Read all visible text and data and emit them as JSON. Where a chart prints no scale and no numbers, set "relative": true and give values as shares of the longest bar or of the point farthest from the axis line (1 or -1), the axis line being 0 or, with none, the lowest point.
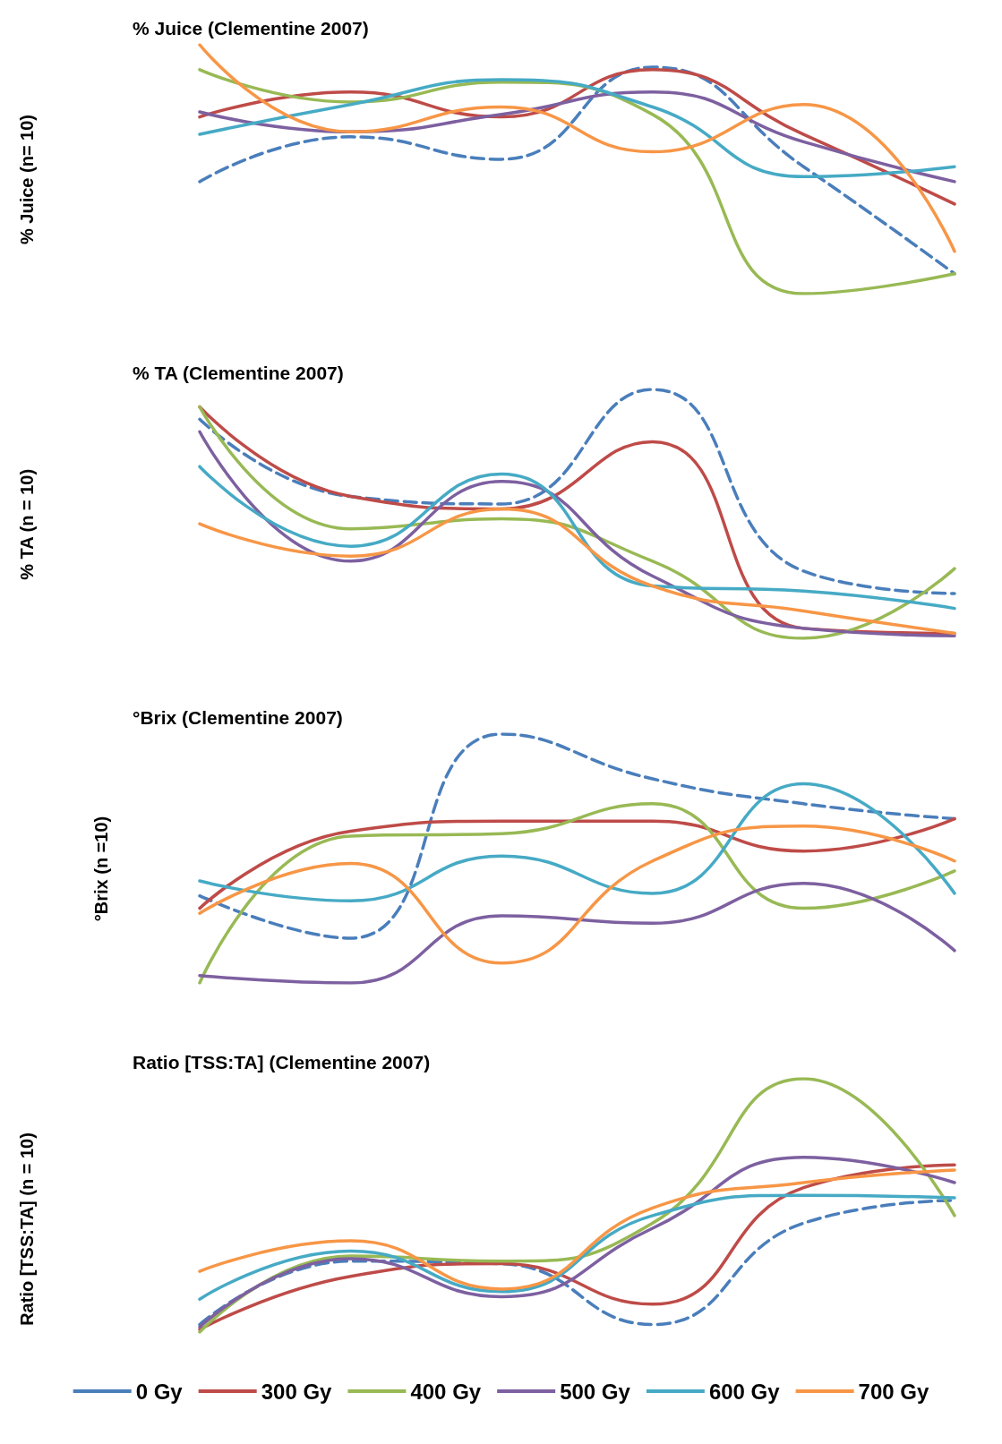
{
  "chart_data": [
    {
      "type": "line",
      "title": "% Juice (Clementine 2007)",
      "ylabel": "% Juice (n= 10)",
      "relative": true,
      "categories": [
        null,
        null,
        null,
        null,
        null,
        null
      ],
      "legend": false,
      "series": [
        {
          "color": "#4a7ebb",
          "line_style": "dashed",
          "values": [
            0.45,
            0.63,
            0.54,
            0.91,
            0.51,
            0.08
          ]
        },
        {
          "color": "#be4b48",
          "values": [
            0.71,
            0.81,
            0.71,
            0.9,
            0.64,
            0.36
          ]
        },
        {
          "color": "#98b954",
          "values": [
            0.9,
            0.77,
            0.85,
            0.72,
            0,
            0.08
          ]
        },
        {
          "color": "#7d60a0",
          "values": [
            0.73,
            0.65,
            0.72,
            0.81,
            0.61,
            0.45
          ]
        },
        {
          "color": "#46aac5",
          "values": [
            0.64,
            0.76,
            0.86,
            0.75,
            0.47,
            0.51
          ]
        },
        {
          "color": "#f79646",
          "values": [
            1,
            0.65,
            0.75,
            0.57,
            0.76,
            0.17
          ]
        }
      ]
    },
    {
      "type": "line",
      "title": "% TA (Clementine 2007)",
      "ylabel": "% TA (n = 10)",
      "relative": true,
      "categories": [
        null,
        null,
        null,
        null,
        null,
        null
      ],
      "legend": false,
      "series": [
        {
          "color": "#4a7ebb",
          "line_style": "dashed",
          "values": [
            0.88,
            0.57,
            0.54,
            1,
            0.27,
            0.18
          ]
        },
        {
          "color": "#be4b48",
          "values": [
            0.93,
            0.57,
            0.52,
            0.79,
            0.04,
            0.02
          ]
        },
        {
          "color": "#98b954",
          "values": [
            0.93,
            0.44,
            0.48,
            0.31,
            0,
            0.28
          ]
        },
        {
          "color": "#7d60a0",
          "values": [
            0.83,
            0.31,
            0.63,
            0.25,
            0.04,
            0.01
          ]
        },
        {
          "color": "#46aac5",
          "values": [
            0.69,
            0.37,
            0.66,
            0.21,
            0.19,
            0.12
          ]
        },
        {
          "color": "#f79646",
          "values": [
            0.46,
            0.33,
            0.52,
            0.21,
            0.11,
            0.02
          ]
        }
      ]
    },
    {
      "type": "line",
      "title": "°Brix (Clementine 2007)",
      "ylabel": "°Brix (n =10)",
      "relative": true,
      "categories": [
        null,
        null,
        null,
        null,
        null,
        null
      ],
      "legend": false,
      "series": [
        {
          "color": "#4a7ebb",
          "line_style": "dashed",
          "values": [
            0.35,
            0.18,
            1,
            0.82,
            0.72,
            0.66
          ]
        },
        {
          "color": "#be4b48",
          "values": [
            0.3,
            0.61,
            0.65,
            0.65,
            0.53,
            0.66
          ]
        },
        {
          "color": "#98b954",
          "values": [
            0,
            0.59,
            0.6,
            0.72,
            0.3,
            0.45
          ]
        },
        {
          "color": "#7d60a0",
          "values": [
            0.03,
            0,
            0.27,
            0.24,
            0.4,
            0.13
          ]
        },
        {
          "color": "#46aac5",
          "values": [
            0.41,
            0.33,
            0.51,
            0.36,
            0.8,
            0.36
          ]
        },
        {
          "color": "#f79646",
          "values": [
            0.28,
            0.48,
            0.08,
            0.49,
            0.63,
            0.49
          ]
        }
      ]
    },
    {
      "type": "line",
      "title": "Ratio [TSS:TA] (Clementine 2007)",
      "ylabel": "Ratio [TSS:TA] (n = 10)",
      "relative": true,
      "categories": [
        null,
        null,
        null,
        null,
        null,
        null
      ],
      "legend": "bottom",
      "series": [
        {
          "name": "0 Gy",
          "color": "#4a7ebb",
          "line_style": "dashed",
          "values": [
            0.03,
            0.28,
            0.27,
            0.03,
            0.43,
            0.52
          ]
        },
        {
          "name": "300 Gy",
          "color": "#be4b48",
          "values": [
            0.01,
            0.22,
            0.27,
            0.11,
            0.57,
            0.66
          ]
        },
        {
          "name": "400 Gy",
          "color": "#98b954",
          "values": [
            0,
            0.3,
            0.28,
            0.43,
            1,
            0.46
          ]
        },
        {
          "name": "500 Gy",
          "color": "#7d60a0",
          "values": [
            0.02,
            0.29,
            0.14,
            0.41,
            0.69,
            0.59
          ]
        },
        {
          "name": "600 Gy",
          "color": "#46aac5",
          "values": [
            0.13,
            0.32,
            0.16,
            0.46,
            0.54,
            0.53
          ]
        },
        {
          "name": "700 Gy",
          "color": "#f79646",
          "values": [
            0.24,
            0.36,
            0.17,
            0.49,
            0.59,
            0.64
          ]
        }
      ]
    }
  ]
}
